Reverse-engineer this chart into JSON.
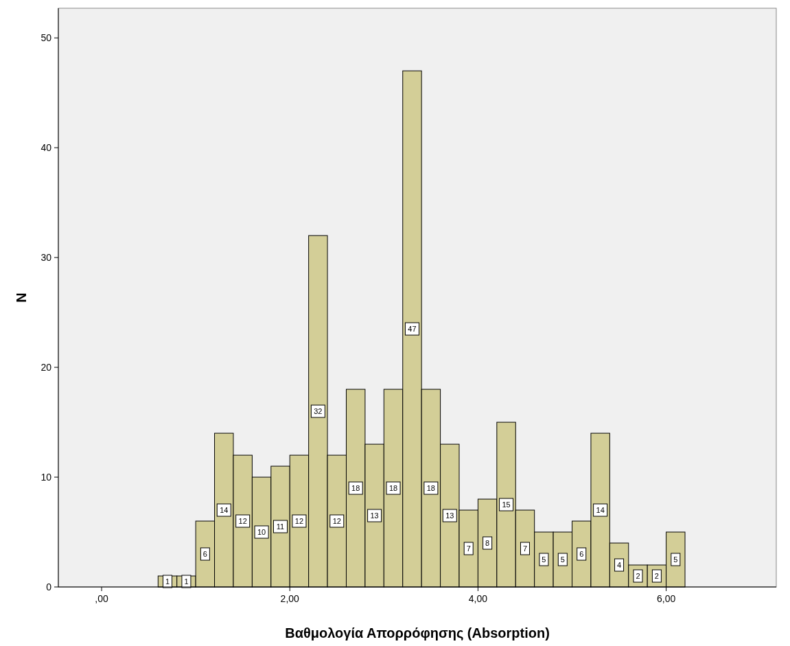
{
  "chart_data": {
    "type": "histogram",
    "xlabel": "Βαθμολογία Απορρόφησης (Absorption)",
    "ylabel": "N",
    "bins": [
      0.6,
      0.8,
      1.0,
      1.2,
      1.4,
      1.6,
      1.8,
      2.0,
      2.2,
      2.4,
      2.6,
      2.8,
      3.0,
      3.2,
      3.4,
      3.6,
      3.8,
      4.0,
      4.2,
      4.4,
      4.6,
      4.8,
      5.0,
      5.2,
      5.4,
      5.6,
      5.8,
      6.0,
      6.2
    ],
    "values": [
      1,
      1,
      6,
      14,
      12,
      10,
      11,
      12,
      32,
      12,
      18,
      13,
      18,
      47,
      18,
      13,
      7,
      8,
      15,
      7,
      5,
      5,
      6,
      14,
      4,
      2,
      2,
      5
    ],
    "color": "#d3ce97",
    "data_labels": true,
    "grid": false,
    "xlim": [
      -0.46,
      7.17
    ],
    "xticks": [
      {
        "value": 0,
        "label": ",00"
      },
      {
        "value": 2,
        "label": "2,00"
      },
      {
        "value": 4,
        "label": "4,00"
      },
      {
        "value": 6,
        "label": "6,00"
      }
    ],
    "ylim": [
      0,
      52.7
    ],
    "yticks": [
      0,
      10,
      20,
      30,
      40,
      50
    ]
  }
}
